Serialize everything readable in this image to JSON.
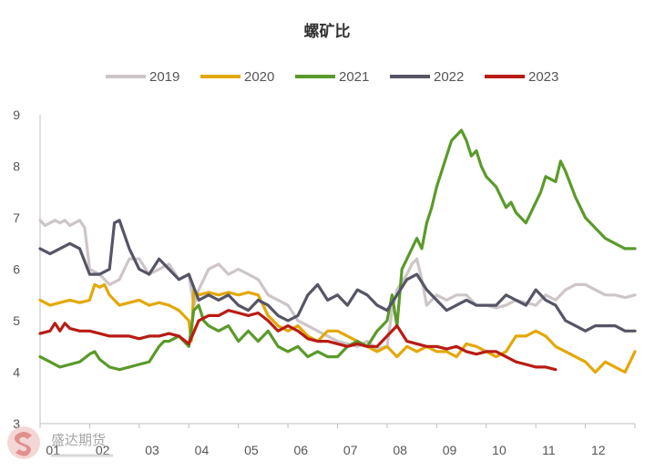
{
  "chart_data": {
    "type": "line",
    "title": "螺矿比",
    "xlabel": "",
    "ylabel": "",
    "ylim": [
      3,
      9
    ],
    "yticks": [
      3,
      4,
      5,
      6,
      7,
      8,
      9
    ],
    "x_domain": [
      1,
      13
    ],
    "x_tick_labels": [
      "01",
      "02",
      "03",
      "04",
      "05",
      "06",
      "07",
      "08",
      "09",
      "10",
      "11",
      "12"
    ],
    "legend_position": "top",
    "grid": false,
    "series": [
      {
        "name": "2019",
        "color": "#cdc5c7",
        "x": [
          1.0,
          1.1,
          1.2,
          1.3,
          1.4,
          1.5,
          1.6,
          1.7,
          1.8,
          1.9,
          2.0,
          2.2,
          2.4,
          2.6,
          2.8,
          3.0,
          3.2,
          3.4,
          3.6,
          3.8,
          4.0,
          4.1,
          4.2,
          4.4,
          4.6,
          4.8,
          5.0,
          5.2,
          5.4,
          5.6,
          5.8,
          6.0,
          6.2,
          6.4,
          6.6,
          6.8,
          7.0,
          7.2,
          7.4,
          7.6,
          7.8,
          8.0,
          8.1,
          8.2,
          8.4,
          8.5,
          8.6,
          8.7,
          8.8,
          9.0,
          9.2,
          9.4,
          9.6,
          9.8,
          10.0,
          10.2,
          10.4,
          10.6,
          10.8,
          11.0,
          11.2,
          11.4,
          11.6,
          11.8,
          12.0,
          12.2,
          12.4,
          12.6,
          12.8,
          13.0
        ],
        "values": [
          6.95,
          6.85,
          6.9,
          6.95,
          6.9,
          6.95,
          6.85,
          6.9,
          6.95,
          6.8,
          6.0,
          5.9,
          5.7,
          5.8,
          6.2,
          6.2,
          5.9,
          6.0,
          6.1,
          5.8,
          5.9,
          5.3,
          5.6,
          6.0,
          6.1,
          5.9,
          6.0,
          5.9,
          5.8,
          5.5,
          5.4,
          5.3,
          5.0,
          4.9,
          4.8,
          4.7,
          4.6,
          4.55,
          4.5,
          4.6,
          4.45,
          4.5,
          5.2,
          5.6,
          5.9,
          6.1,
          6.2,
          5.8,
          5.3,
          5.5,
          5.4,
          5.5,
          5.5,
          5.3,
          5.3,
          5.25,
          5.3,
          5.4,
          5.35,
          5.3,
          5.5,
          5.4,
          5.6,
          5.7,
          5.7,
          5.6,
          5.5,
          5.5,
          5.45,
          5.5
        ]
      },
      {
        "name": "2020",
        "color": "#e3a809",
        "x": [
          1.0,
          1.2,
          1.4,
          1.6,
          1.8,
          2.0,
          2.1,
          2.2,
          2.3,
          2.4,
          2.6,
          2.8,
          3.0,
          3.2,
          3.4,
          3.6,
          3.8,
          4.0,
          4.05,
          4.1,
          4.2,
          4.4,
          4.6,
          4.8,
          5.0,
          5.2,
          5.4,
          5.6,
          5.8,
          6.0,
          6.2,
          6.4,
          6.6,
          6.8,
          7.0,
          7.2,
          7.4,
          7.6,
          7.8,
          8.0,
          8.2,
          8.4,
          8.6,
          8.8,
          9.0,
          9.2,
          9.4,
          9.6,
          9.8,
          10.0,
          10.2,
          10.4,
          10.6,
          10.8,
          11.0,
          11.2,
          11.4,
          11.6,
          11.8,
          12.0,
          12.2,
          12.4,
          12.6,
          12.8,
          13.0
        ],
        "values": [
          5.4,
          5.3,
          5.35,
          5.4,
          5.35,
          5.4,
          5.7,
          5.65,
          5.7,
          5.5,
          5.3,
          5.35,
          5.4,
          5.3,
          5.35,
          5.3,
          5.2,
          5.0,
          4.6,
          5.6,
          5.5,
          5.55,
          5.5,
          5.55,
          5.5,
          5.55,
          5.5,
          5.1,
          4.9,
          4.8,
          4.9,
          4.7,
          4.6,
          4.8,
          4.8,
          4.7,
          4.6,
          4.5,
          4.4,
          4.5,
          4.3,
          4.5,
          4.4,
          4.5,
          4.4,
          4.4,
          4.3,
          4.55,
          4.5,
          4.4,
          4.3,
          4.4,
          4.7,
          4.7,
          4.8,
          4.7,
          4.5,
          4.4,
          4.3,
          4.2,
          4.0,
          4.2,
          4.1,
          4.0,
          4.4
        ]
      },
      {
        "name": "2021",
        "color": "#5a9a2a",
        "x": [
          1.0,
          1.2,
          1.4,
          1.6,
          1.8,
          2.0,
          2.1,
          2.2,
          2.4,
          2.6,
          2.8,
          3.0,
          3.2,
          3.4,
          3.5,
          3.6,
          3.8,
          4.0,
          4.1,
          4.2,
          4.3,
          4.4,
          4.6,
          4.8,
          5.0,
          5.2,
          5.4,
          5.6,
          5.8,
          6.0,
          6.2,
          6.4,
          6.6,
          6.8,
          7.0,
          7.2,
          7.4,
          7.6,
          7.8,
          8.0,
          8.1,
          8.2,
          8.3,
          8.4,
          8.5,
          8.6,
          8.7,
          8.8,
          8.9,
          9.0,
          9.1,
          9.2,
          9.3,
          9.4,
          9.5,
          9.6,
          9.7,
          9.8,
          9.9,
          10.0,
          10.2,
          10.4,
          10.5,
          10.6,
          10.8,
          11.0,
          11.1,
          11.2,
          11.4,
          11.5,
          11.6,
          11.8,
          12.0,
          12.2,
          12.4,
          12.6,
          12.8,
          13.0
        ],
        "values": [
          4.3,
          4.2,
          4.1,
          4.15,
          4.2,
          4.35,
          4.4,
          4.25,
          4.1,
          4.05,
          4.1,
          4.15,
          4.2,
          4.5,
          4.6,
          4.6,
          4.7,
          4.5,
          5.2,
          5.3,
          5.0,
          4.9,
          4.8,
          4.9,
          4.6,
          4.8,
          4.6,
          4.8,
          4.5,
          4.4,
          4.5,
          4.3,
          4.4,
          4.3,
          4.3,
          4.5,
          4.6,
          4.5,
          4.8,
          5.0,
          5.5,
          4.9,
          6.0,
          6.2,
          6.4,
          6.6,
          6.4,
          6.9,
          7.2,
          7.6,
          7.9,
          8.2,
          8.5,
          8.6,
          8.7,
          8.5,
          8.2,
          8.3,
          8.0,
          7.8,
          7.6,
          7.2,
          7.3,
          7.1,
          6.9,
          7.3,
          7.5,
          7.8,
          7.7,
          8.1,
          7.9,
          7.4,
          7.0,
          6.8,
          6.6,
          6.5,
          6.4,
          6.4
        ]
      },
      {
        "name": "2022",
        "color": "#555566",
        "x": [
          1.0,
          1.2,
          1.4,
          1.6,
          1.8,
          2.0,
          2.2,
          2.4,
          2.5,
          2.6,
          2.8,
          3.0,
          3.2,
          3.4,
          3.6,
          3.8,
          4.0,
          4.2,
          4.4,
          4.6,
          4.8,
          5.0,
          5.2,
          5.4,
          5.6,
          5.8,
          6.0,
          6.2,
          6.4,
          6.6,
          6.8,
          7.0,
          7.2,
          7.4,
          7.6,
          7.8,
          8.0,
          8.2,
          8.4,
          8.6,
          8.8,
          9.0,
          9.2,
          9.4,
          9.6,
          9.8,
          10.0,
          10.2,
          10.4,
          10.6,
          10.8,
          11.0,
          11.2,
          11.4,
          11.6,
          11.8,
          12.0,
          12.2,
          12.4,
          12.6,
          12.8,
          13.0
        ],
        "values": [
          6.4,
          6.3,
          6.4,
          6.5,
          6.4,
          5.9,
          5.9,
          6.0,
          6.9,
          6.95,
          6.4,
          6.0,
          5.9,
          6.2,
          6.0,
          5.8,
          5.9,
          5.4,
          5.5,
          5.4,
          5.5,
          5.3,
          5.2,
          5.4,
          5.3,
          5.1,
          5.0,
          5.1,
          5.5,
          5.7,
          5.4,
          5.5,
          5.3,
          5.6,
          5.5,
          5.3,
          5.2,
          5.5,
          5.8,
          5.9,
          5.6,
          5.4,
          5.2,
          5.3,
          5.4,
          5.3,
          5.3,
          5.3,
          5.5,
          5.4,
          5.3,
          5.6,
          5.4,
          5.3,
          5.0,
          4.9,
          4.8,
          4.9,
          4.9,
          4.9,
          4.8,
          4.8
        ]
      },
      {
        "name": "2023",
        "color": "#b81c14",
        "x": [
          1.0,
          1.2,
          1.3,
          1.4,
          1.5,
          1.6,
          1.8,
          2.0,
          2.2,
          2.4,
          2.6,
          2.8,
          3.0,
          3.2,
          3.4,
          3.6,
          3.8,
          4.0,
          4.2,
          4.4,
          4.6,
          4.8,
          5.0,
          5.2,
          5.4,
          5.6,
          5.8,
          6.0,
          6.2,
          6.4,
          6.6,
          6.8,
          7.0,
          7.2,
          7.4,
          7.6,
          7.8,
          8.0,
          8.2,
          8.4,
          8.6,
          8.8,
          9.0,
          9.2,
          9.4,
          9.6,
          9.8,
          10.0,
          10.2,
          10.4,
          10.6,
          10.8,
          11.0,
          11.2,
          11.4
        ],
        "values": [
          4.75,
          4.8,
          4.95,
          4.8,
          4.95,
          4.85,
          4.8,
          4.8,
          4.75,
          4.7,
          4.7,
          4.7,
          4.65,
          4.7,
          4.7,
          4.75,
          4.7,
          4.55,
          5.0,
          5.1,
          5.1,
          5.2,
          5.15,
          5.1,
          5.15,
          5.0,
          4.8,
          4.9,
          4.8,
          4.65,
          4.6,
          4.6,
          4.55,
          4.5,
          4.55,
          4.5,
          4.5,
          4.7,
          4.9,
          4.6,
          4.55,
          4.5,
          4.5,
          4.45,
          4.5,
          4.4,
          4.35,
          4.4,
          4.4,
          4.3,
          4.2,
          4.15,
          4.1,
          4.1,
          4.05
        ]
      }
    ]
  },
  "watermark": {
    "brand_text": "盛达期货"
  }
}
